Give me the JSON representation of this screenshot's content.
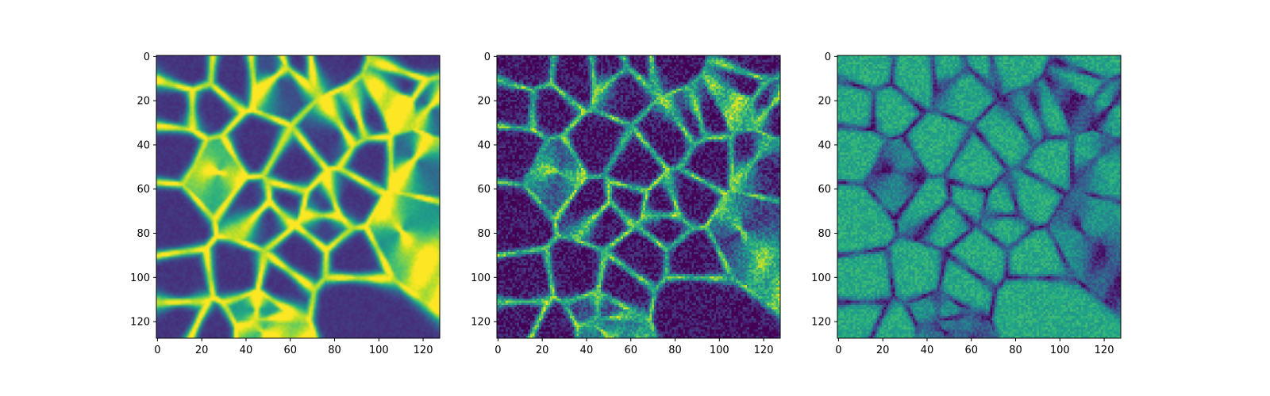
{
  "colors": {
    "colormap": "viridis",
    "axes_edge": "#000000",
    "background": "#ffffff"
  },
  "chart_data": [
    {
      "type": "heatmap",
      "title": "",
      "xlabel": "",
      "ylabel": "",
      "grid": false,
      "image_size": [
        128,
        128
      ],
      "xlim": [
        -0.5,
        127.5
      ],
      "ylim": [
        127.5,
        -0.5
      ],
      "x_ticks": [
        0,
        20,
        40,
        60,
        80,
        100,
        120
      ],
      "y_ticks": [
        0,
        20,
        40,
        60,
        80,
        100,
        120
      ],
      "x_tick_labels": [
        "0",
        "20",
        "40",
        "60",
        "80",
        "100",
        "120"
      ],
      "y_tick_labels": [
        "0",
        "20",
        "40",
        "60",
        "80",
        "100",
        "120"
      ],
      "description": "smooth cellular network pattern: bright thin membranes between dark cells",
      "background_level": 0.15,
      "edge_level": 0.75,
      "noise": 0.03,
      "smoothness": "high"
    },
    {
      "type": "heatmap",
      "title": "",
      "xlabel": "",
      "ylabel": "",
      "grid": false,
      "image_size": [
        128,
        128
      ],
      "xlim": [
        -0.5,
        127.5
      ],
      "ylim": [
        127.5,
        -0.5
      ],
      "x_ticks": [
        0,
        20,
        40,
        60,
        80,
        100,
        120
      ],
      "y_ticks": [
        0,
        20,
        40,
        60,
        80,
        100,
        120
      ],
      "x_tick_labels": [
        "0",
        "20",
        "40",
        "60",
        "80",
        "100",
        "120"
      ],
      "y_tick_labels": [
        "0",
        "20",
        "40",
        "60",
        "80",
        "100",
        "120"
      ],
      "description": "noisy cellular network pattern: dark speckled cells with bright teal membranes",
      "background_level": 0.05,
      "edge_level": 0.55,
      "noise": 0.14,
      "smoothness": "low"
    },
    {
      "type": "heatmap",
      "title": "",
      "xlabel": "",
      "ylabel": "",
      "grid": false,
      "image_size": [
        128,
        128
      ],
      "xlim": [
        -0.5,
        127.5
      ],
      "ylim": [
        127.5,
        -0.5
      ],
      "x_ticks": [
        0,
        20,
        40,
        60,
        80,
        100,
        120
      ],
      "y_ticks": [
        0,
        20,
        40,
        60,
        80,
        100,
        120
      ],
      "x_tick_labels": [
        "0",
        "20",
        "40",
        "60",
        "80",
        "100",
        "120"
      ],
      "y_tick_labels": [
        "0",
        "20",
        "40",
        "60",
        "80",
        "100",
        "120"
      ],
      "description": "inverted cellular pattern: green cells with darker blue membranes and yellow highlights",
      "background_level": 0.6,
      "edge_level": -0.3,
      "noise": 0.09,
      "smoothness": "low"
    }
  ]
}
